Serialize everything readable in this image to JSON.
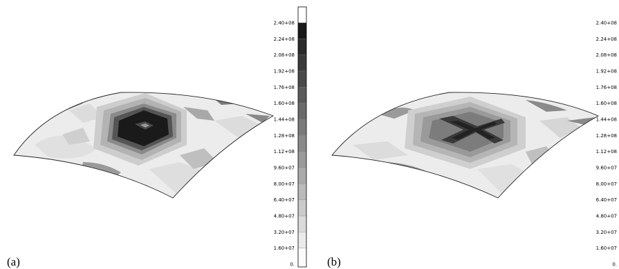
{
  "figure": {
    "panels": [
      {
        "label": "(a)",
        "pattern": "square-peak"
      },
      {
        "label": "(b)",
        "pattern": "x-cross"
      }
    ],
    "colorbar": {
      "ticks": [
        "2.40+08",
        "2.24+08",
        "2.08+08",
        "1.92+08",
        "1.76+08",
        "1.60+08",
        "1.44+08",
        "1.28+08",
        "1.12+08",
        "9.60+07",
        "8.00+07",
        "6.40+07",
        "4.80+07",
        "3.20+07",
        "1.60+07",
        "0."
      ],
      "levels": 16,
      "min_color": "#ffffff",
      "max_color": "#1a1a1a"
    }
  }
}
